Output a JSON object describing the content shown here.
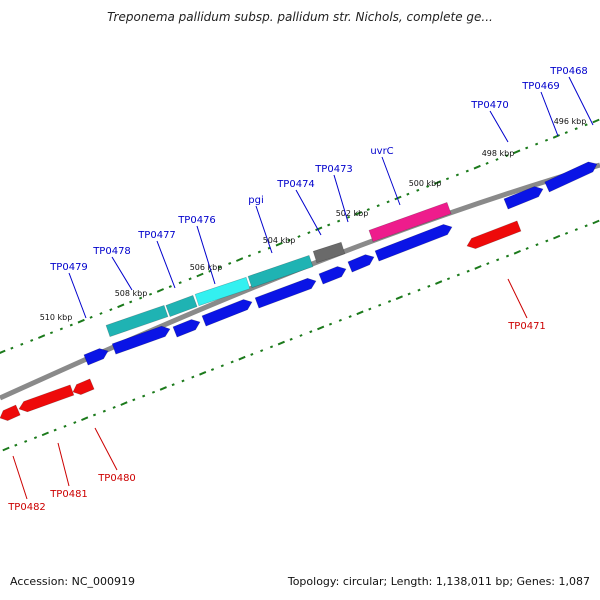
{
  "title": "Treponema pallidum subsp. pallidum str. Nichols, complete ge...",
  "footer": {
    "accession": "Accession: NC_000919",
    "topology": "Topology: circular; Length: 1,138,011 bp; Genes: 1,087"
  },
  "colors": {
    "forward_gene": "#0a14e6",
    "reverse_gene": "#ee0a0a",
    "rna_teal": "#1fb3b3",
    "rna_cyan": "#33f0f0",
    "pink": "#ee1c8c",
    "gray": "#6a6a6a",
    "backbone": "#888888",
    "tick": "#1b7a1b",
    "label_forward": "#0000cc",
    "label_reverse": "#cc0000"
  },
  "kbp_markers": [
    "510 kbp",
    "508 kbp",
    "506 kbp",
    "504 kbp",
    "502 kbp",
    "500 kbp",
    "498 kbp",
    "496 kbp"
  ],
  "forward_labels": [
    "TP0479",
    "TP0478",
    "TP0477",
    "TP0476",
    "pgi",
    "TP0474",
    "TP0473",
    "uvrC",
    "TP0470",
    "TP0469",
    "TP0468"
  ],
  "reverse_labels": [
    "TP0471",
    "TP0480",
    "TP0481",
    "TP0482"
  ]
}
